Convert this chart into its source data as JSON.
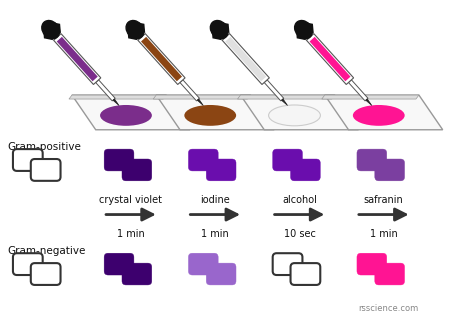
{
  "bg_color": "#ffffff",
  "slide_colors": [
    "#7b2d8b",
    "#8B4513",
    "#f0f0f0",
    "#ff1493"
  ],
  "dropper_colors": [
    "#7b2d8b",
    "#8B4513",
    "#e0e0e0",
    "#ff1493"
  ],
  "step_labels": [
    "crystal violet",
    "iodine",
    "alcohol",
    "safranin"
  ],
  "time_labels": [
    "1 min",
    "1 min",
    "10 sec",
    "1 min"
  ],
  "gram_positive_label": "Gram-positive",
  "gram_negative_label": "Gram-negative",
  "watermark": "rsscience.com",
  "arrow_color": "#333333",
  "gram_pos_stages": [
    {
      "fill": "#ffffff",
      "edge": "#333333",
      "lw": 1.5
    },
    {
      "fill": "#3d006e",
      "edge": "#3d006e",
      "lw": 0.3
    },
    {
      "fill": "#6a0dad",
      "edge": "#6a0dad",
      "lw": 0.3
    },
    {
      "fill": "#6a0dad",
      "edge": "#6a0dad",
      "lw": 0.3
    },
    {
      "fill": "#7b3fa0",
      "edge": "#7b3fa0",
      "lw": 0.3
    }
  ],
  "gram_neg_stages": [
    {
      "fill": "#ffffff",
      "edge": "#333333",
      "lw": 1.5
    },
    {
      "fill": "#3d006e",
      "edge": "#3d006e",
      "lw": 0.3
    },
    {
      "fill": "#9966cc",
      "edge": "#9966cc",
      "lw": 0.3
    },
    {
      "fill": "#ffffff",
      "edge": "#333333",
      "lw": 1.5
    },
    {
      "fill": "#ff1493",
      "edge": "#ff1493",
      "lw": 0.3
    }
  ],
  "figsize": [
    4.74,
    3.23
  ],
  "dpi": 100
}
